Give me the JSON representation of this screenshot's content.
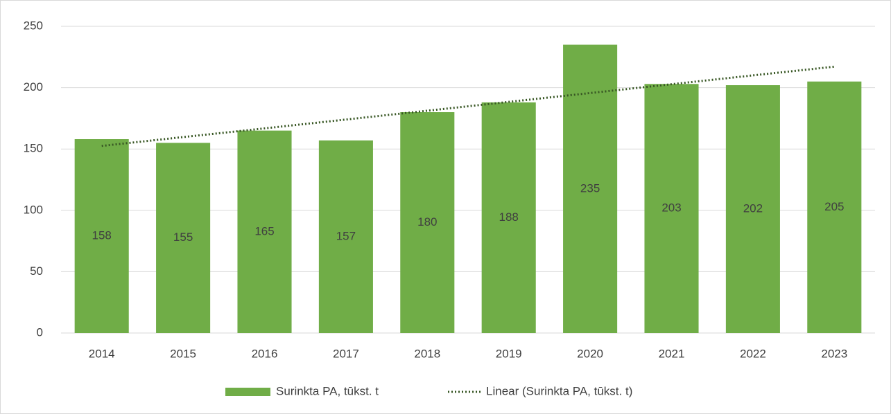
{
  "chart_data": {
    "type": "bar",
    "categories": [
      "2014",
      "2015",
      "2016",
      "2017",
      "2018",
      "2019",
      "2020",
      "2021",
      "2022",
      "2023"
    ],
    "series": [
      {
        "name": "Surinkta PA, tūkst. t",
        "type": "bar",
        "color": "#70ad47",
        "values": [
          158,
          155,
          165,
          157,
          180,
          188,
          235,
          203,
          202,
          205
        ]
      },
      {
        "name": "Linear (Surinkta PA, tūkst. t)",
        "type": "line",
        "dash": "dotted",
        "color": "#375623",
        "values": [
          152.5,
          159.7,
          166.8,
          174.0,
          181.2,
          188.4,
          195.6,
          202.8,
          210.0,
          217.1
        ]
      }
    ],
    "ylim": [
      0,
      250
    ],
    "yticks": [
      0,
      50,
      100,
      150,
      200,
      250
    ],
    "grid": true,
    "legend": "bottom"
  }
}
